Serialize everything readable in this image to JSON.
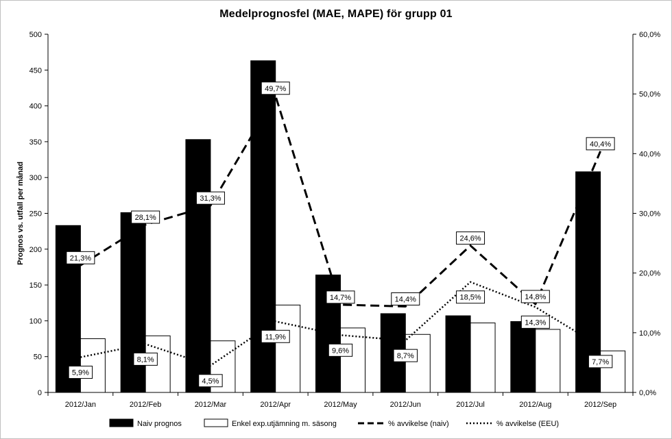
{
  "chart_data": {
    "type": "bar",
    "title": "Medelprognosfel  (MAE, MAPE) för grupp 01",
    "categories": [
      "2012/Jan",
      "2012/Feb",
      "2012/Mar",
      "2012/Apr",
      "2012/May",
      "2012/Jun",
      "2012/Jul",
      "2012/Aug",
      "2012/Sep"
    ],
    "ylabel": "Prognos vs. utfall per månad",
    "ylim": [
      0,
      500
    ],
    "yticks": [
      "0",
      "50",
      "100",
      "150",
      "200",
      "250",
      "300",
      "350",
      "400",
      "450",
      "500"
    ],
    "y2lim": [
      0,
      60
    ],
    "y2ticks": [
      "0,0%",
      "10,0%",
      "20,0%",
      "30,0%",
      "40,0%",
      "50,0%",
      "60,0%"
    ],
    "grid": false,
    "legend_position": "bottom",
    "series": [
      {
        "name": "Naiv prognos",
        "kind": "bar",
        "axis": "left",
        "color": "#000000",
        "values": [
          233,
          251,
          353,
          463,
          164,
          110,
          107,
          99,
          308
        ]
      },
      {
        "name": "Enkel exp.utjämning  m. säsong",
        "kind": "bar",
        "axis": "left",
        "color": "#ffffff",
        "values": [
          75,
          79,
          72,
          122,
          90,
          81,
          97,
          88,
          58
        ]
      },
      {
        "name": "% avvikelse (naiv)",
        "kind": "line",
        "style": "dashed",
        "axis": "right",
        "color": "#000000",
        "values": [
          21.3,
          28.1,
          31.3,
          49.7,
          14.7,
          14.4,
          24.6,
          14.8,
          40.4
        ],
        "labels": [
          "21,3%",
          "28,1%",
          "31,3%",
          "49,7%",
          "14,7%",
          "14,4%",
          "24,6%",
          "14,8%",
          "40,4%"
        ]
      },
      {
        "name": "% avvikelse (EEU)",
        "kind": "line",
        "style": "dotted",
        "axis": "right",
        "color": "#000000",
        "values": [
          5.9,
          8.1,
          4.5,
          11.9,
          9.6,
          8.7,
          18.5,
          14.3,
          7.7
        ],
        "labels": [
          "5,9%",
          "8,1%",
          "4,5%",
          "11,9%",
          "9,6%",
          "8,7%",
          "18,5%",
          "14,3%",
          "7,7%"
        ]
      }
    ]
  }
}
